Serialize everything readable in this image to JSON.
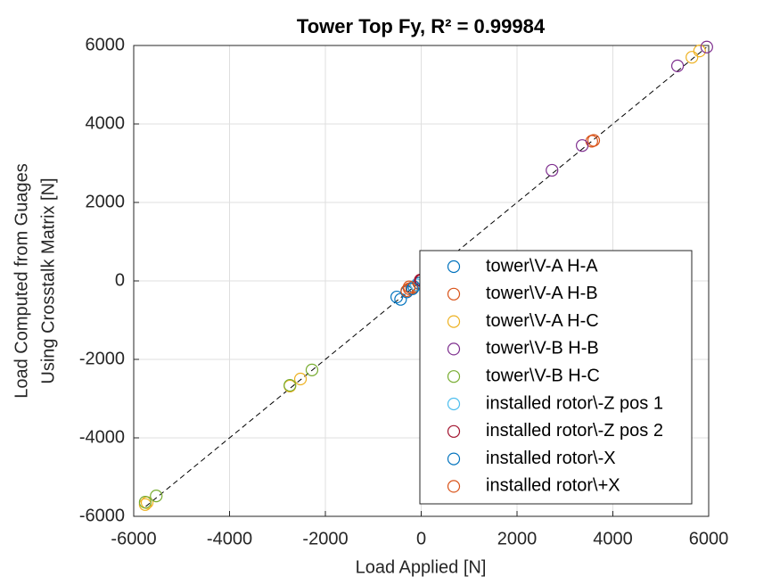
{
  "chart_data": {
    "type": "scatter",
    "title": "Tower Top Fy, R² = 0.99984",
    "xlabel": "Load Applied [N]",
    "ylabel": [
      "Load Computed from Guages",
      "Using Crosstalk Matrix [N]"
    ],
    "xlim": [
      -6000,
      6000
    ],
    "ylim": [
      -6000,
      6000
    ],
    "xticks": [
      -6000,
      -4000,
      -2000,
      0,
      2000,
      4000,
      6000
    ],
    "yticks": [
      -6000,
      -4000,
      -2000,
      0,
      2000,
      4000,
      6000
    ],
    "grid": true,
    "legend": "lower right",
    "fit_line": {
      "x": [
        -5750,
        5950
      ],
      "y": [
        -5750,
        5950
      ],
      "color": "#000000"
    },
    "series": [
      {
        "name": "tower\\V-A H-A",
        "color": "#0072BD",
        "x": [
          -510,
          -430,
          -300,
          -150,
          -50
        ],
        "y": [
          -410,
          -470,
          -280,
          -150,
          -60
        ]
      },
      {
        "name": "tower\\V-A H-B",
        "color": "#D95319",
        "x": [
          3560,
          3600,
          -250,
          -300,
          -200,
          0
        ],
        "y": [
          3560,
          3580,
          -200,
          -250,
          -180,
          10
        ]
      },
      {
        "name": "tower\\V-A H-C",
        "color": "#EDB120",
        "x": [
          5650,
          5810,
          -5760,
          -5720,
          -2520,
          -2740
        ],
        "y": [
          5700,
          5860,
          -5700,
          -5650,
          -2500,
          -2680
        ]
      },
      {
        "name": "tower\\V-B H-B",
        "color": "#7E2F8E",
        "x": [
          5960,
          5350,
          3360,
          2730,
          0
        ],
        "y": [
          5960,
          5480,
          3450,
          2820,
          20
        ]
      },
      {
        "name": "tower\\V-B H-C",
        "color": "#77AC30",
        "x": [
          -5530,
          -2280,
          -2740,
          -5760
        ],
        "y": [
          -5480,
          -2270,
          -2660,
          -5640
        ]
      },
      {
        "name": "installed rotor\\-Z pos 1",
        "color": "#4DBEEE",
        "x": [
          -100
        ],
        "y": [
          -100
        ]
      },
      {
        "name": "installed rotor\\-Z pos 2",
        "color": "#A2142F",
        "x": [
          -20,
          0
        ],
        "y": [
          20,
          10
        ]
      },
      {
        "name": "installed rotor\\-X",
        "color": "#0072BD",
        "x": [
          -180
        ],
        "y": [
          -200
        ]
      },
      {
        "name": "installed rotor\\+X",
        "color": "#D95319",
        "x": [
          -250
        ],
        "y": [
          -150
        ]
      }
    ]
  }
}
